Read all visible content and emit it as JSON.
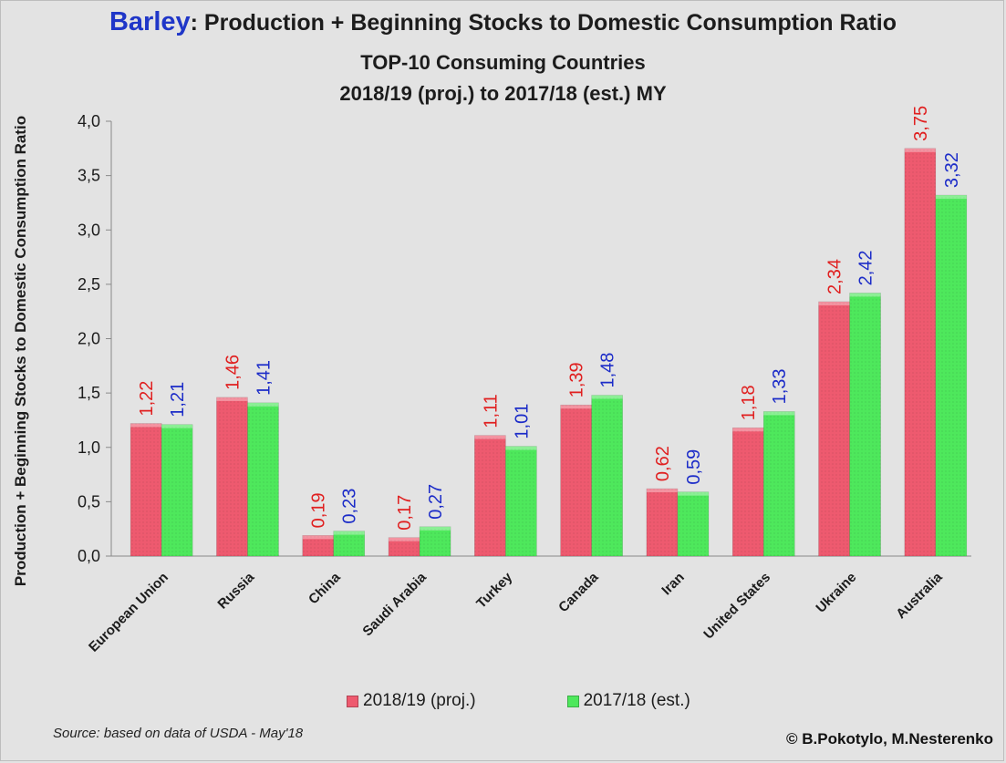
{
  "title": {
    "highlight": "Barley",
    "rest": ": Production + Beginning Stocks to Domestic Consumption Ratio",
    "line2": "TOP-10 Consuming Countries",
    "line3": "2018/19 (proj.) to 2017/18 (est.) MY"
  },
  "footer": {
    "source": "Source: based on data of USDA - May'18",
    "copyright": "© B.Pokotylo, M.Nesterenko"
  },
  "colors": {
    "series1": "#ee5a6f",
    "series1_label": "#e02020",
    "series2": "#4ee85c",
    "series2_label": "#1c2cc8",
    "background": "#e3e3e3"
  },
  "chart_data": {
    "type": "bar",
    "title": "Barley: Production + Beginning Stocks to Domestic Consumption Ratio",
    "ylabel": "Production + Beginning Stocks to Domestic Consumption Ratio",
    "xlabel": "",
    "ylim": [
      0,
      4.0
    ],
    "yticks": [
      "0,0",
      "0,5",
      "1,0",
      "1,5",
      "2,0",
      "2,5",
      "3,0",
      "3,5",
      "4,0"
    ],
    "categories": [
      "European Union",
      "Russia",
      "China",
      "Saudi Arabia",
      "Turkey",
      "Canada",
      "Iran",
      "United States",
      "Ukraine",
      "Australia"
    ],
    "series": [
      {
        "name": "2018/19 (proj.)",
        "values": [
          1.22,
          1.46,
          0.19,
          0.17,
          1.11,
          1.39,
          0.62,
          1.18,
          2.34,
          3.75
        ],
        "labels": [
          "1,22",
          "1,46",
          "0,19",
          "0,17",
          "1,11",
          "1,39",
          "0,62",
          "1,18",
          "2,34",
          "3,75"
        ]
      },
      {
        "name": "2017/18 (est.)",
        "values": [
          1.21,
          1.41,
          0.23,
          0.27,
          1.01,
          1.48,
          0.59,
          1.33,
          2.42,
          3.32
        ],
        "labels": [
          "1,21",
          "1,41",
          "0,23",
          "0,27",
          "1,01",
          "1,48",
          "0,59",
          "1,33",
          "2,42",
          "3,32"
        ]
      }
    ],
    "legend_position": "bottom"
  }
}
